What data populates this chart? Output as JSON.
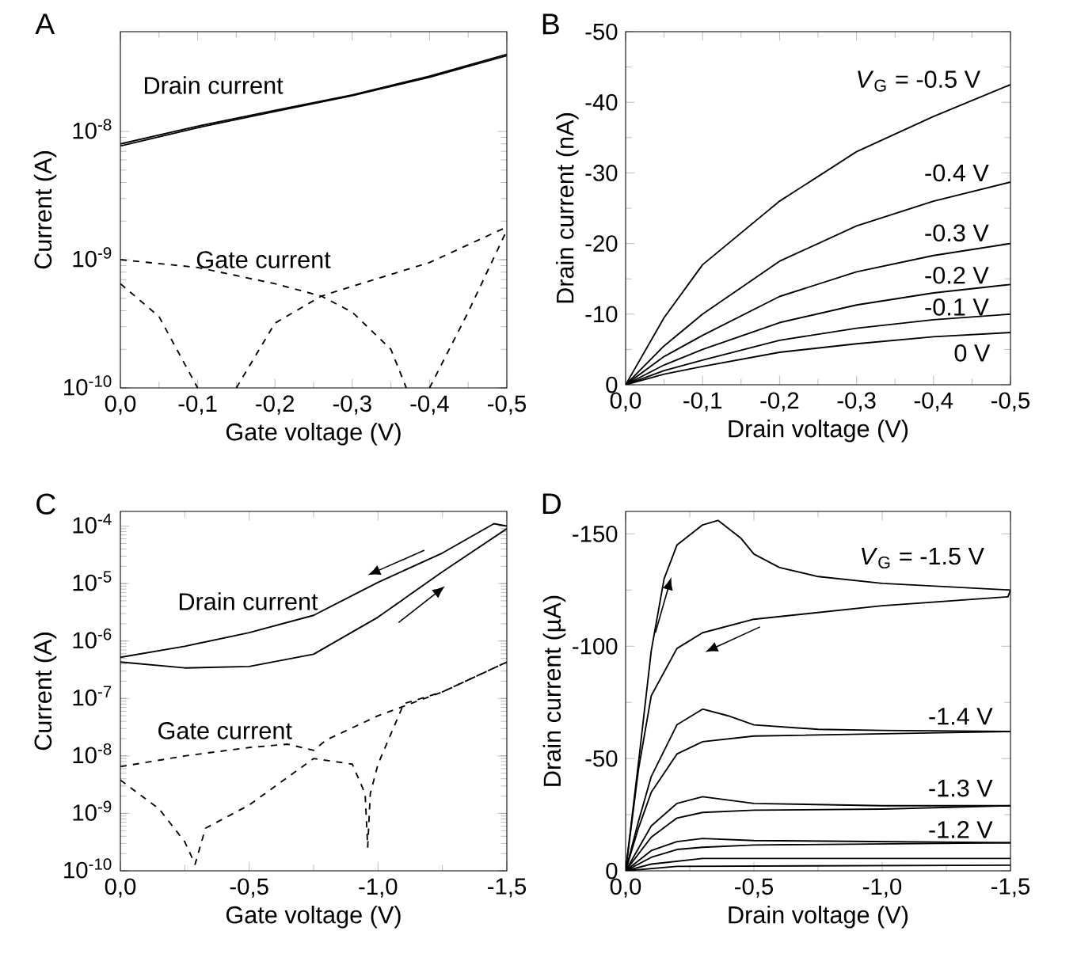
{
  "chart_data": [
    {
      "type": "line",
      "title": "A",
      "xlabel": "Gate voltage (V)",
      "ylabel": "Current (A)",
      "log": "y",
      "xlim": [
        0,
        -0.5
      ],
      "ylim": [
        1e-10,
        6e-08
      ],
      "xticks": [
        {
          "value": 0,
          "label": "0,0"
        },
        {
          "value": -0.1,
          "label": "-0,1"
        },
        {
          "value": -0.2,
          "label": "-0,2"
        },
        {
          "value": -0.3,
          "label": "-0,3"
        },
        {
          "value": -0.4,
          "label": "-0,4"
        },
        {
          "value": -0.5,
          "label": "-0,5"
        }
      ],
      "yticks": [
        {
          "value": 1e-10,
          "label": "10$^{-10}$"
        },
        {
          "value": 1e-09,
          "label": "10$^{-9}$"
        },
        {
          "value": 1e-08,
          "label": "10$^{-8}$"
        }
      ],
      "annotations": [
        "Drain current",
        "Gate current"
      ],
      "series": [
        {
          "color": "#000000",
          "line_style": "solid",
          "x": [
            0,
            -0.1,
            -0.2,
            -0.3,
            -0.4,
            -0.5
          ],
          "values": [
            8e-09,
            1.1e-08,
            1.46e-08,
            1.93e-08,
            2.7e-08,
            4e-08
          ]
        },
        {
          "color": "#000000",
          "line_style": "solid",
          "x": [
            0,
            -0.1,
            -0.2,
            -0.3,
            -0.4,
            -0.5
          ],
          "values": [
            7.7e-09,
            1.07e-08,
            1.43e-08,
            1.9e-08,
            2.65e-08,
            3.9e-08
          ]
        },
        {
          "color": "#000000",
          "line_style": "dashed",
          "x": [
            0,
            -0.1,
            -0.2,
            -0.26,
            -0.3,
            -0.35,
            -0.37,
            -0.385,
            -0.4,
            -0.45,
            -0.5
          ],
          "values": [
            1e-09,
            8.7e-10,
            6.5e-10,
            5.2e-10,
            3.9e-10,
            2e-10,
            1e-10,
            null,
            1e-10,
            3.9e-10,
            1.7e-09
          ]
        },
        {
          "color": "#000000",
          "line_style": "dashed",
          "x": [
            0,
            -0.05,
            -0.1,
            -0.125,
            -0.15,
            -0.2,
            -0.26,
            -0.3,
            -0.4,
            -0.5
          ],
          "values": [
            6.5e-10,
            3.6e-10,
            1e-10,
            null,
            1e-10,
            3.2e-10,
            5.2e-10,
            6.2e-10,
            9.5e-10,
            1.8e-09
          ]
        }
      ]
    },
    {
      "type": "line",
      "title": "B",
      "xlabel": "Drain voltage (V)",
      "ylabel": "Drain current (nA)",
      "xlim": [
        0,
        -0.5
      ],
      "ylim": [
        0,
        -50
      ],
      "xticks": [
        {
          "value": 0,
          "label": "0,0"
        },
        {
          "value": -0.1,
          "label": "-0,1"
        },
        {
          "value": -0.2,
          "label": "-0,2"
        },
        {
          "value": -0.3,
          "label": "-0,3"
        },
        {
          "value": -0.4,
          "label": "-0,4"
        },
        {
          "value": -0.5,
          "label": "-0,5"
        }
      ],
      "yticks": [
        0,
        -10,
        -20,
        -30,
        -40,
        -50
      ],
      "annotations": [
        "*V*$_{G}$ = -0.5 V",
        "-0.4 V",
        "-0.3 V",
        "-0.2 V",
        "-0.1 V",
        "0 V"
      ],
      "series": [
        {
          "color": "#000000",
          "line_style": "solid",
          "x": [
            0,
            -0.05,
            -0.1,
            -0.2,
            -0.3,
            -0.4,
            -0.5
          ],
          "values": [
            0,
            -9.5,
            -17,
            -26,
            -33,
            -38,
            -42.5
          ]
        },
        {
          "color": "#000000",
          "line_style": "solid",
          "x": [
            0,
            -0.05,
            -0.1,
            -0.2,
            -0.3,
            -0.4,
            -0.5
          ],
          "values": [
            0,
            -5.5,
            -10,
            -17.5,
            -22.5,
            -26,
            -28.7
          ]
        },
        {
          "color": "#000000",
          "line_style": "solid",
          "x": [
            0,
            -0.05,
            -0.1,
            -0.2,
            -0.3,
            -0.4,
            -0.5
          ],
          "values": [
            0,
            -4,
            -7,
            -12.5,
            -16,
            -18.3,
            -20
          ]
        },
        {
          "color": "#000000",
          "line_style": "solid",
          "x": [
            0,
            -0.05,
            -0.1,
            -0.2,
            -0.3,
            -0.4,
            -0.5
          ],
          "values": [
            0,
            -2.8,
            -5,
            -8.8,
            -11.3,
            -13,
            -14.2
          ]
        },
        {
          "color": "#000000",
          "line_style": "solid",
          "x": [
            0,
            -0.05,
            -0.1,
            -0.2,
            -0.3,
            -0.4,
            -0.5
          ],
          "values": [
            0,
            -2,
            -3.5,
            -6.3,
            -8,
            -9.2,
            -10
          ]
        },
        {
          "color": "#000000",
          "line_style": "solid",
          "x": [
            0,
            -0.05,
            -0.1,
            -0.2,
            -0.3,
            -0.4,
            -0.5
          ],
          "values": [
            0,
            -1.5,
            -2.6,
            -4.6,
            -5.8,
            -6.8,
            -7.4
          ]
        }
      ]
    },
    {
      "type": "line",
      "title": "C",
      "xlabel": "Gate voltage (V)",
      "ylabel": "Current (A)",
      "log": "y",
      "xlim": [
        0,
        -1.5
      ],
      "ylim": [
        1e-10,
        0.00018
      ],
      "xticks": [
        {
          "value": 0,
          "label": "0,0"
        },
        {
          "value": -0.5,
          "label": "-0,5"
        },
        {
          "value": -1.0,
          "label": "-1,0"
        },
        {
          "value": -1.5,
          "label": "-1,5"
        }
      ],
      "yticks": [
        {
          "value": 1e-10,
          "label": "10$^{-10}$"
        },
        {
          "value": 1e-09,
          "label": "10$^{-9}$"
        },
        {
          "value": 1e-08,
          "label": "10$^{-8}$"
        },
        {
          "value": 1e-07,
          "label": "10$^{-7}$"
        },
        {
          "value": 1e-06,
          "label": "10$^{-6}$"
        },
        {
          "value": 1e-05,
          "label": "10$^{-5}$"
        },
        {
          "value": 0.0001,
          "label": "10$^{-4}$"
        }
      ],
      "annotations": [
        "Drain current",
        "Gate current"
      ],
      "series": [
        {
          "color": "#000000",
          "line_style": "solid",
          "x": [
            0,
            -0.25,
            -0.5,
            -0.75,
            -1.0,
            -1.25,
            -1.45,
            -1.5
          ],
          "values": [
            5.2e-07,
            8.1e-07,
            1.4e-06,
            2.8e-06,
            1.05e-05,
            3.4e-05,
            0.00011,
            0.0001
          ]
        },
        {
          "color": "#000000",
          "line_style": "solid",
          "x": [
            0,
            -0.25,
            -0.5,
            -0.75,
            -1.0,
            -1.25,
            -1.5
          ],
          "values": [
            4.3e-07,
            3.4e-07,
            3.6e-07,
            5.9e-07,
            2.6e-06,
            1.6e-05,
            9e-05
          ]
        },
        {
          "color": "#000000",
          "line_style": "dashed",
          "x": [
            0,
            -0.25,
            -0.5,
            -0.65,
            -0.75,
            -0.8,
            -1.0,
            -1.25,
            -1.5
          ],
          "values": [
            6.5e-09,
            1e-08,
            1.4e-08,
            1.6e-08,
            1.25e-08,
            1.9e-08,
            5e-08,
            1.3e-07,
            4.3e-07
          ]
        },
        {
          "color": "#000000",
          "line_style": "dashed",
          "x": [
            0,
            -0.15,
            -0.25,
            -0.29,
            -0.33,
            -0.5,
            -0.75,
            -0.9,
            -0.95,
            -0.96,
            -0.97,
            -1.0,
            -1.1,
            -1.25,
            -1.5
          ],
          "values": [
            3.8e-09,
            1.2e-09,
            3.2e-10,
            1.3e-10,
            5.5e-10,
            1.4e-09,
            9e-09,
            7.2e-09,
            2.2e-09,
            2.6e-10,
            2.2e-09,
            7.2e-09,
            8.1e-08,
            1.3e-07,
            4.3e-07
          ]
        }
      ]
    },
    {
      "type": "line",
      "title": "D",
      "xlabel": "Drain voltage (V)",
      "ylabel": "Drain current (µA)",
      "xlim": [
        0,
        -1.5
      ],
      "ylim": [
        0,
        -160
      ],
      "xticks": [
        {
          "value": 0,
          "label": "0,0"
        },
        {
          "value": -0.5,
          "label": "-0,5"
        },
        {
          "value": -1.0,
          "label": "-1,0"
        },
        {
          "value": -1.5,
          "label": "-1,5"
        }
      ],
      "yticks": [
        0,
        -50,
        -100,
        -150
      ],
      "annotations": [
        "*V*$_{G}$ = -1.5 V",
        "-1.4 V",
        "-1.3 V",
        "-1.2 V"
      ],
      "series": [
        {
          "color": "#000000",
          "line_style": "solid",
          "x": [
            0,
            -0.05,
            -0.1,
            -0.15,
            -0.2,
            -0.3,
            -0.36,
            -0.45,
            -0.5,
            -0.6,
            -0.75,
            -1.0,
            -1.25,
            -1.5
          ],
          "values": [
            0,
            -48,
            -98,
            -130,
            -145,
            -154,
            -156,
            -148,
            -141,
            -135,
            -131,
            -128,
            -126.5,
            -125
          ]
        },
        {
          "color": "#000000",
          "line_style": "solid",
          "x": [
            -1.5,
            -1.49,
            -1.0,
            -0.5,
            -0.3,
            -0.2,
            -0.1,
            -0.05,
            0
          ],
          "values": [
            -125,
            -122,
            -118,
            -112,
            -106,
            -99,
            -78,
            -45,
            0
          ]
        },
        {
          "color": "#000000",
          "line_style": "solid",
          "x": [
            0,
            -0.05,
            -0.1,
            -0.2,
            -0.3,
            -0.4,
            -0.5,
            -0.75,
            -1.0,
            -1.5
          ],
          "values": [
            0,
            -22,
            -42,
            -65,
            -72,
            -69,
            -65,
            -63,
            -62.5,
            -62
          ]
        },
        {
          "color": "#000000",
          "line_style": "solid",
          "x": [
            -1.5,
            -1.0,
            -0.5,
            -0.3,
            -0.2,
            -0.1,
            -0.05,
            0
          ],
          "values": [
            -62,
            -61,
            -60,
            -57.5,
            -52,
            -35,
            -19,
            0
          ]
        },
        {
          "color": "#000000",
          "line_style": "solid",
          "x": [
            0,
            -0.1,
            -0.2,
            -0.3,
            -0.5,
            -1.0,
            -1.5
          ],
          "values": [
            0,
            -20,
            -30,
            -33,
            -30,
            -29,
            -29
          ]
        },
        {
          "color": "#000000",
          "line_style": "solid",
          "x": [
            -1.5,
            -1.0,
            -0.5,
            -0.3,
            -0.2,
            -0.1,
            0
          ],
          "values": [
            -29,
            -27.5,
            -27,
            -26,
            -23.5,
            -15,
            0
          ]
        },
        {
          "color": "#000000",
          "line_style": "solid",
          "x": [
            0,
            -0.1,
            -0.2,
            -0.3,
            -0.5,
            -1.5
          ],
          "values": [
            0,
            -9,
            -13,
            -14.4,
            -13.5,
            -12.5
          ]
        },
        {
          "color": "#000000",
          "line_style": "solid",
          "x": [
            -1.5,
            -0.5,
            -0.3,
            -0.2,
            -0.1,
            0
          ],
          "values": [
            -12.5,
            -11.5,
            -10.5,
            -9.5,
            -6,
            0
          ]
        },
        {
          "color": "#000000",
          "line_style": "solid",
          "x": [
            0,
            -0.1,
            -0.3,
            -1.5
          ],
          "values": [
            0,
            -3,
            -5.5,
            -5.5
          ]
        },
        {
          "color": "#000000",
          "line_style": "solid",
          "x": [
            0,
            -0.2,
            -1.5
          ],
          "values": [
            0,
            -2,
            -2.5
          ]
        }
      ]
    }
  ]
}
